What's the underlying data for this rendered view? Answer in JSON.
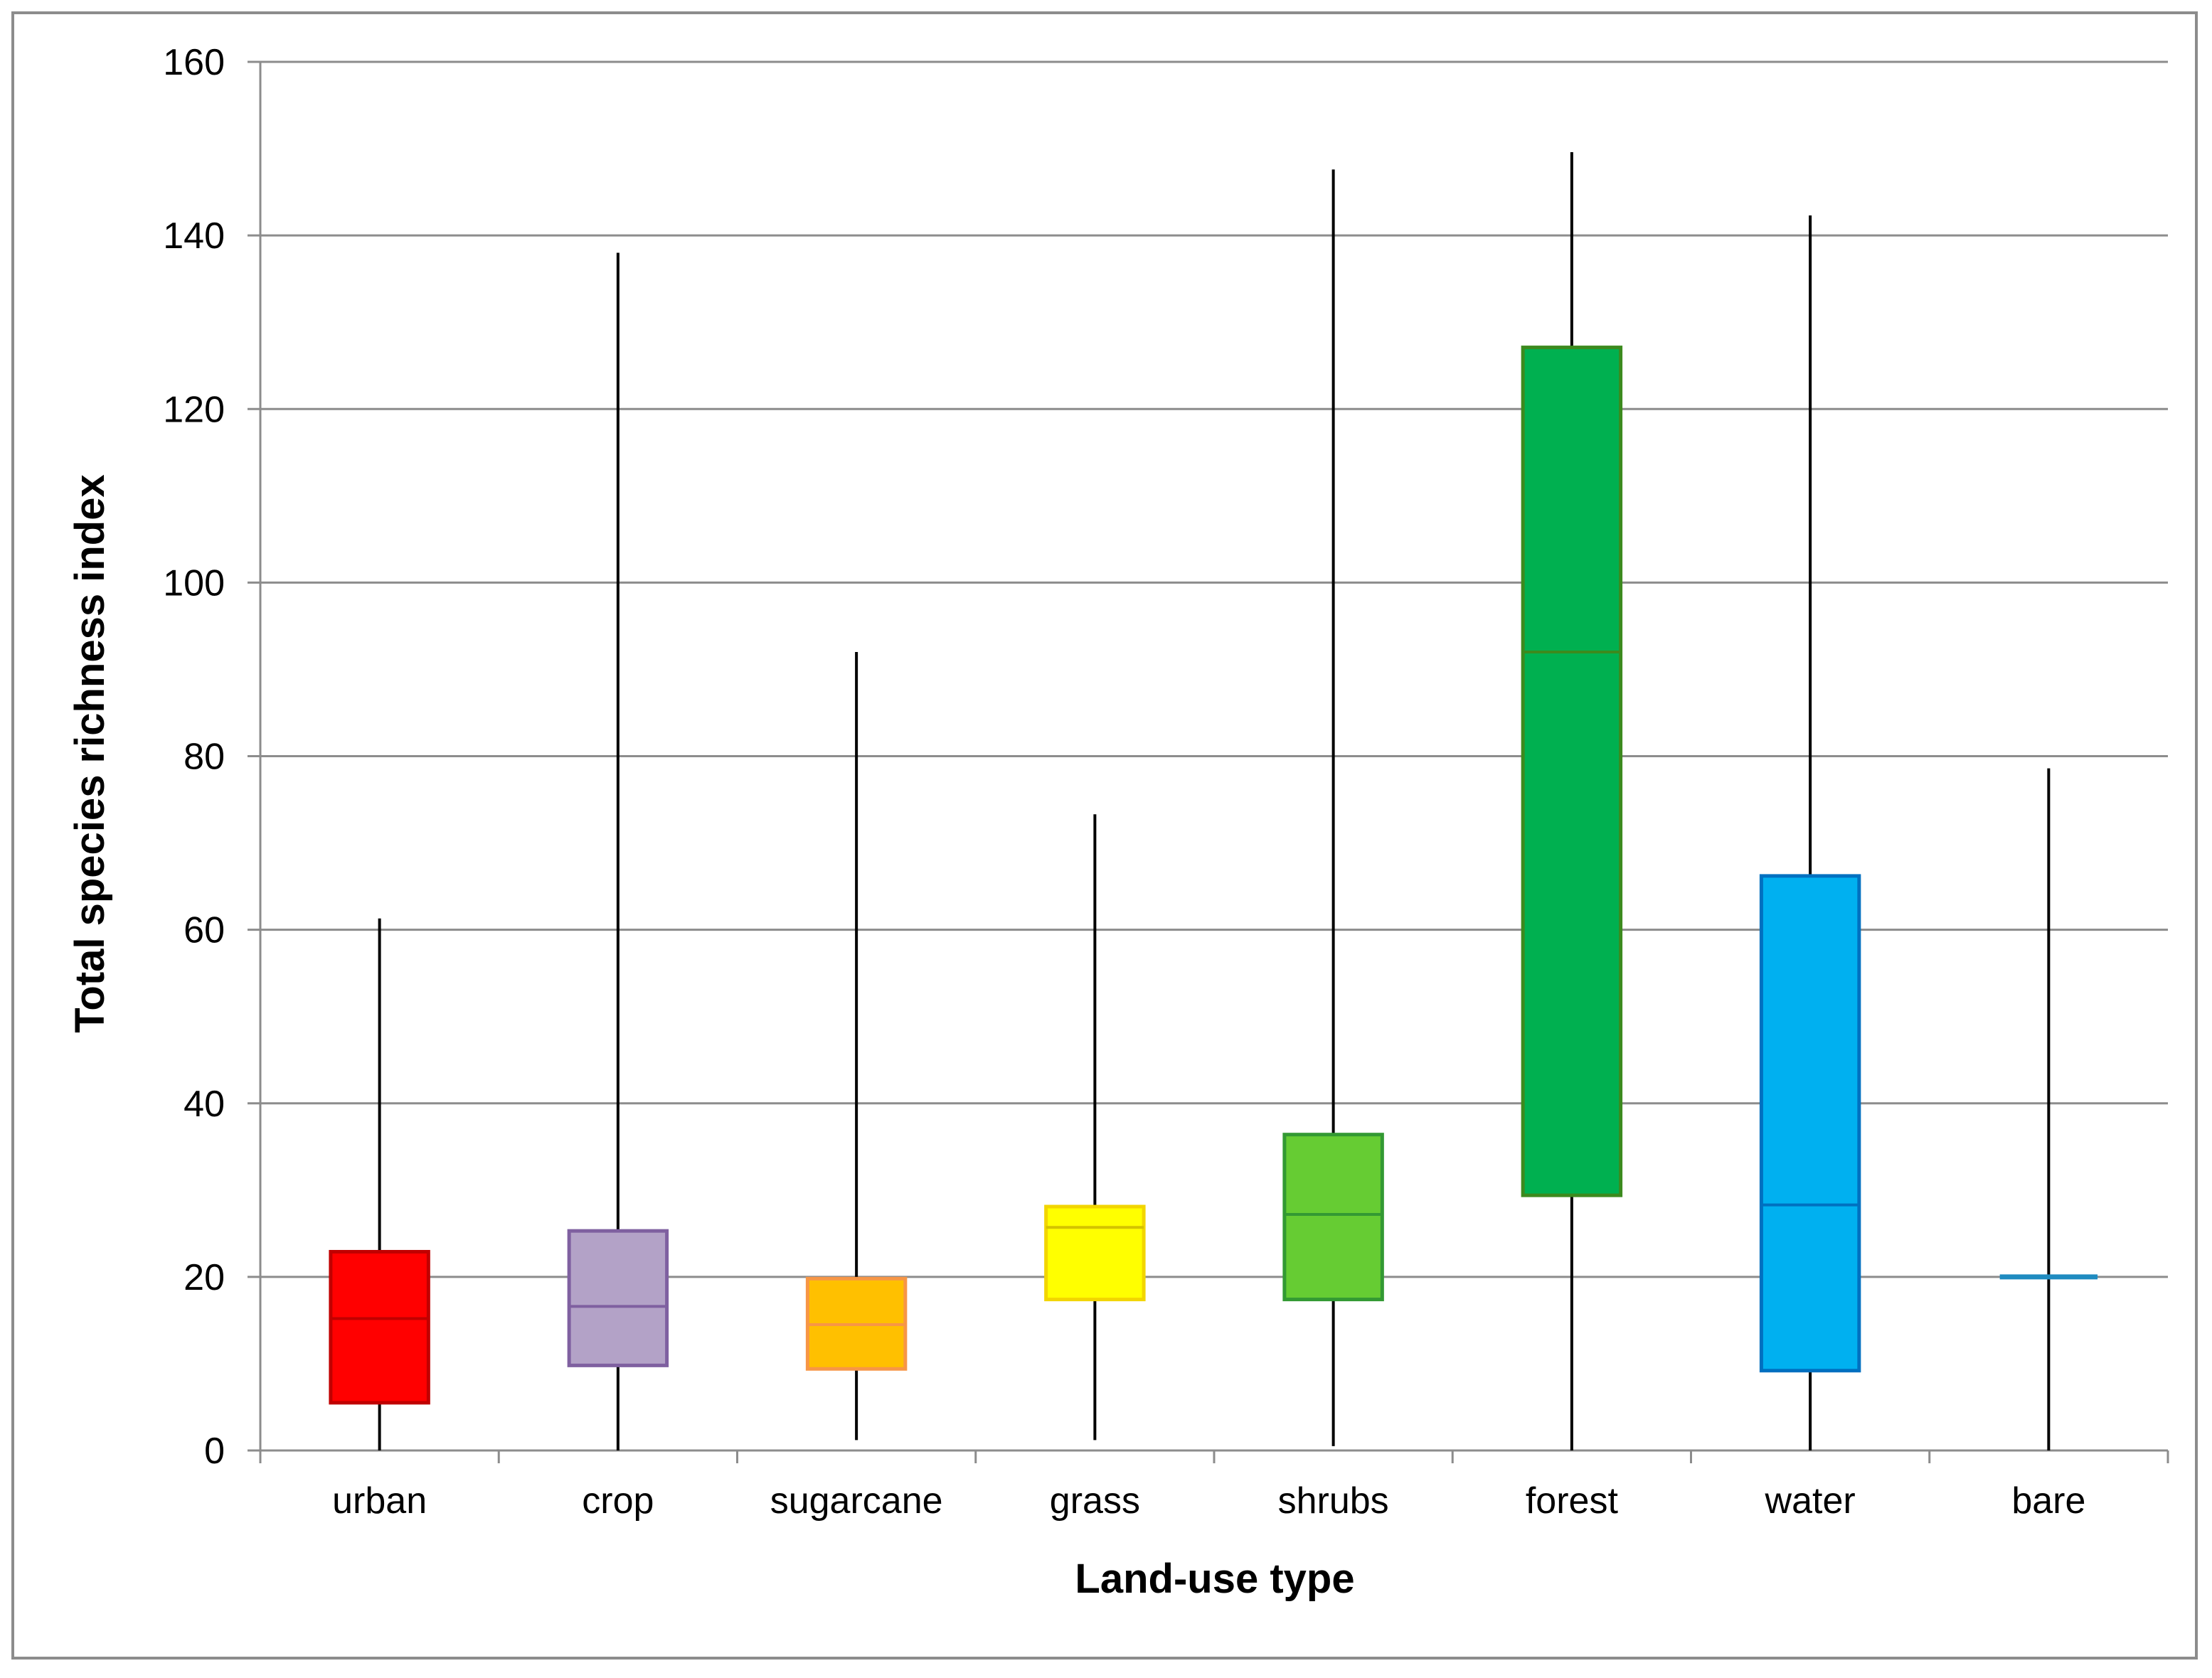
{
  "chart_data": {
    "type": "boxplot",
    "title": "",
    "xlabel": "Land-use type",
    "ylabel": "Total species richness index",
    "ylim": [
      0,
      160
    ],
    "yticks": [
      0,
      20,
      40,
      60,
      80,
      100,
      120,
      140,
      160
    ],
    "grid": true,
    "legend": "none",
    "categories": [
      "urban",
      "crop",
      "sugarcane",
      "grass",
      "shrubs",
      "forest",
      "water",
      "bare"
    ],
    "series": [
      {
        "category": "urban",
        "min": 0,
        "q1": 5.5,
        "median": 15.2,
        "q3": 22.9,
        "max": 61.3,
        "fill": "#ff0000",
        "stroke": "#c00000",
        "median_color": "#c00000"
      },
      {
        "category": "crop",
        "min": 0,
        "q1": 9.8,
        "median": 16.6,
        "q3": 25.3,
        "max": 138.0,
        "fill": "#b3a2c7",
        "stroke": "#7f60a0",
        "median_color": "#7f60a0"
      },
      {
        "category": "sugarcane",
        "min": 1.2,
        "q1": 9.4,
        "median": 14.5,
        "q3": 19.8,
        "max": 92.0,
        "fill": "#ffc000",
        "stroke": "#f79646",
        "median_color": "#f79646"
      },
      {
        "category": "grass",
        "min": 1.2,
        "q1": 17.4,
        "median": 25.7,
        "q3": 28.1,
        "max": 73.3,
        "fill": "#ffff00",
        "stroke": "#f2d500",
        "median_color": "#d4c200"
      },
      {
        "category": "shrubs",
        "min": 0.5,
        "q1": 17.4,
        "median": 27.2,
        "q3": 36.4,
        "max": 147.6,
        "fill": "#66cc33",
        "stroke": "#339933",
        "median_color": "#339933"
      },
      {
        "category": "forest",
        "min": 0,
        "q1": 29.4,
        "median": 92.0,
        "q3": 127.1,
        "max": 149.6,
        "fill": "#00b050",
        "stroke": "#3c8a1e",
        "median_color": "#3c8a1e"
      },
      {
        "category": "water",
        "min": 0,
        "q1": 9.2,
        "median": 28.3,
        "q3": 66.2,
        "max": 142.3,
        "fill": "#00b0f0",
        "stroke": "#0070c0",
        "median_color": "#0070c0"
      },
      {
        "category": "bare",
        "min": 0,
        "q1": 20.0,
        "median": 20.0,
        "q3": 20.0,
        "max": 78.6,
        "fill": "#00b0f0",
        "stroke": "#1f8bc0",
        "median_color": "#1f8bc0"
      }
    ],
    "colors": {
      "grid": "#8c8c8c",
      "axis": "#8c8c8c",
      "whisker": "#000000"
    }
  }
}
